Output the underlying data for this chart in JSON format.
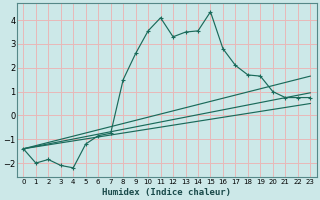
{
  "xlabel": "Humidex (Indice chaleur)",
  "background_color": "#cce8e8",
  "grid_color": "#e8b8b8",
  "line_color": "#1a6a5a",
  "xlim": [
    -0.5,
    23.5
  ],
  "ylim": [
    -2.6,
    4.7
  ],
  "yticks": [
    -2,
    -1,
    0,
    1,
    2,
    3,
    4
  ],
  "xticks": [
    0,
    1,
    2,
    3,
    4,
    5,
    6,
    7,
    8,
    9,
    10,
    11,
    12,
    13,
    14,
    15,
    16,
    17,
    18,
    19,
    20,
    21,
    22,
    23
  ],
  "main_x": [
    0,
    1,
    2,
    3,
    4,
    5,
    6,
    7,
    8,
    9,
    10,
    11,
    12,
    13,
    14,
    15,
    16,
    17,
    18,
    19,
    20,
    21,
    22,
    23
  ],
  "main_y": [
    -1.4,
    -2.0,
    -1.85,
    -2.1,
    -2.2,
    -1.2,
    -0.85,
    -0.75,
    1.5,
    2.6,
    3.55,
    4.1,
    3.3,
    3.5,
    3.55,
    4.35,
    2.8,
    2.1,
    1.7,
    1.65,
    1.0,
    0.75,
    0.75,
    0.75
  ],
  "trend1_x": [
    0,
    23
  ],
  "trend1_y": [
    -1.4,
    1.65
  ],
  "trend2_x": [
    0,
    23
  ],
  "trend2_y": [
    -1.4,
    0.95
  ],
  "trend3_x": [
    0,
    23
  ],
  "trend3_y": [
    -1.4,
    0.5
  ]
}
